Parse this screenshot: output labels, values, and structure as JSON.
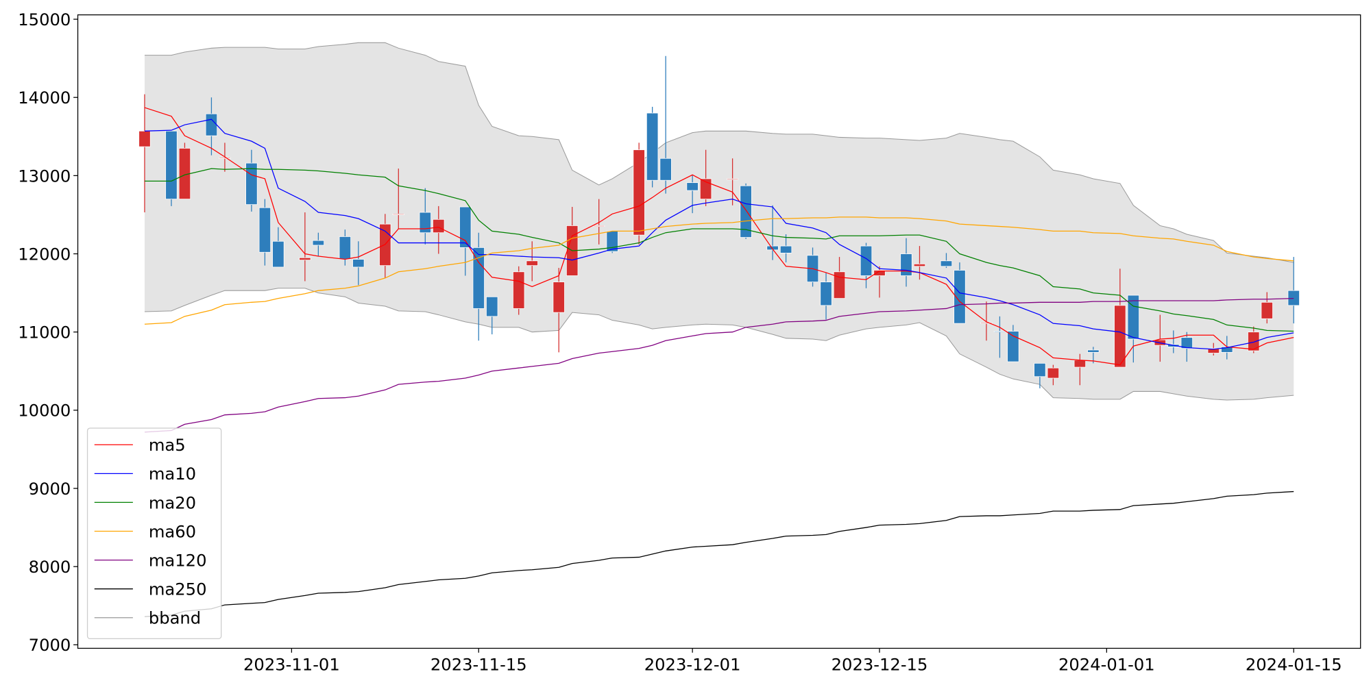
{
  "chart_data": {
    "type": "candlestick",
    "x": [
      "2023-10-21",
      "2023-10-23",
      "2023-10-24",
      "2023-10-26",
      "2023-10-27",
      "2023-10-29",
      "2023-10-30",
      "2023-10-31",
      "2023-11-02",
      "2023-11-03",
      "2023-11-05",
      "2023-11-06",
      "2023-11-08",
      "2023-11-09",
      "2023-11-11",
      "2023-11-12",
      "2023-11-14",
      "2023-11-15",
      "2023-11-16",
      "2023-11-18",
      "2023-11-19",
      "2023-11-21",
      "2023-11-22",
      "2023-11-24",
      "2023-11-25",
      "2023-11-27",
      "2023-11-28",
      "2023-11-29",
      "2023-12-01",
      "2023-12-02",
      "2023-12-04",
      "2023-12-05",
      "2023-12-07",
      "2023-12-08",
      "2023-12-10",
      "2023-12-11",
      "2023-12-12",
      "2023-12-14",
      "2023-12-15",
      "2023-12-17",
      "2023-12-18",
      "2023-12-20",
      "2023-12-21",
      "2023-12-23",
      "2023-12-24",
      "2023-12-25",
      "2023-12-27",
      "2023-12-28",
      "2023-12-30",
      "2023-12-31",
      "2024-01-02",
      "2024-01-03",
      "2024-01-05",
      "2024-01-06",
      "2024-01-07",
      "2024-01-09",
      "2024-01-10",
      "2024-01-12",
      "2024-01-13",
      "2024-01-15"
    ],
    "open": [
      13370,
      13570,
      12700,
      13790,
      13220,
      13160,
      12590,
      12160,
      11920,
      12170,
      12220,
      11930,
      11850,
      12500,
      12530,
      12270,
      12600,
      12080,
      11450,
      11300,
      11850,
      11250,
      11720,
      12350,
      12290,
      12240,
      13800,
      13220,
      12910,
      12700,
      12950,
      12870,
      12100,
      12100,
      11980,
      11640,
      11430,
      12100,
      11720,
      12000,
      11840,
      11910,
      11790,
      11110,
      11010,
      11010,
      10600,
      10410,
      10550,
      10770,
      10550,
      11470,
      10830,
      10840,
      10930,
      10730,
      10810,
      10760,
      11170,
      11530
    ],
    "high": [
      14040,
      13570,
      13420,
      14000,
      13420,
      13330,
      12700,
      12340,
      12530,
      12270,
      12310,
      12160,
      12510,
      13090,
      12840,
      12610,
      12600,
      12270,
      11450,
      11840,
      12160,
      11820,
      12600,
      12700,
      12290,
      13420,
      13880,
      14530,
      13010,
      13330,
      13220,
      12900,
      12620,
      12250,
      12080,
      11760,
      11960,
      12140,
      11840,
      12200,
      12100,
      12010,
      11890,
      11390,
      11200,
      11090,
      10600,
      10580,
      10720,
      10810,
      11810,
      11470,
      11220,
      11020,
      11000,
      10860,
      10950,
      11070,
      11510,
      11960
    ],
    "low": [
      12530,
      12610,
      12700,
      13260,
      13050,
      12540,
      11850,
      11830,
      11650,
      11970,
      11850,
      11600,
      11690,
      12320,
      12120,
      12000,
      11720,
      10890,
      10970,
      11220,
      11650,
      10740,
      11720,
      12120,
      12010,
      12120,
      12850,
      12770,
      12520,
      12610,
      12620,
      12190,
      11920,
      11890,
      11580,
      11160,
      11430,
      11560,
      11440,
      11580,
      11670,
      11820,
      11110,
      10890,
      10670,
      10620,
      10280,
      10320,
      10320,
      10600,
      10550,
      10610,
      10620,
      10730,
      10620,
      10700,
      10650,
      10730,
      11110,
      11110
    ],
    "close": [
      13570,
      12700,
      13350,
      13510,
      13230,
      12630,
      12020,
      11830,
      11950,
      12110,
      11930,
      11830,
      12380,
      12510,
      12270,
      12440,
      12080,
      11300,
      11200,
      11770,
      11910,
      11640,
      12360,
      12360,
      12030,
      13330,
      12940,
      12940,
      12810,
      12960,
      12960,
      12210,
      12050,
      12010,
      11640,
      11340,
      11770,
      11720,
      11790,
      11720,
      11870,
      11840,
      11110,
      11120,
      11000,
      10620,
      10430,
      10540,
      10640,
      10740,
      11340,
      10910,
      10900,
      10810,
      10790,
      10790,
      10740,
      11000,
      11380,
      11340
    ],
    "up_color": "#d62f2f",
    "down_color": "#2e7ebc",
    "series": [
      {
        "name": "ma5",
        "color": "#ff0000",
        "values": [
          13870,
          13760,
          13510,
          13350,
          13240,
          13010,
          12960,
          12400,
          12000,
          11970,
          11930,
          11960,
          12120,
          12320,
          12320,
          12340,
          12170,
          11890,
          11700,
          11650,
          11580,
          11720,
          12230,
          12400,
          12510,
          12610,
          12720,
          12840,
          13010,
          12920,
          12790,
          12560,
          12060,
          11840,
          11810,
          11760,
          11700,
          11670,
          11780,
          11780,
          11760,
          11610,
          11390,
          11130,
          11060,
          10950,
          10800,
          10670,
          10640,
          10630,
          10580,
          10820,
          10910,
          10920,
          10960,
          10960,
          10810,
          10780,
          10860,
          10930
        ]
      },
      {
        "name": "ma10",
        "color": "#0000ff",
        "values": [
          13570,
          13580,
          13650,
          13720,
          13540,
          13440,
          13350,
          12840,
          12670,
          12530,
          12490,
          12450,
          12290,
          12140,
          12140,
          12140,
          12140,
          11990,
          11990,
          11970,
          11960,
          11950,
          11920,
          12010,
          12060,
          12100,
          12270,
          12430,
          12620,
          12650,
          12700,
          12640,
          12600,
          12390,
          12330,
          12270,
          12120,
          11940,
          11810,
          11790,
          11760,
          11690,
          11500,
          11440,
          11400,
          11350,
          11220,
          11110,
          11080,
          11040,
          11000,
          10930,
          10860,
          10830,
          10800,
          10780,
          10800,
          10870,
          10930,
          10990
        ]
      },
      {
        "name": "ma20",
        "color": "#008000",
        "values": [
          12930,
          12930,
          13010,
          13090,
          13080,
          13090,
          13080,
          13080,
          13070,
          13060,
          13030,
          13010,
          12980,
          12870,
          12810,
          12770,
          12680,
          12430,
          12290,
          12250,
          12210,
          12140,
          12040,
          12060,
          12080,
          12140,
          12210,
          12270,
          12320,
          12320,
          12320,
          12310,
          12230,
          12210,
          12200,
          12190,
          12230,
          12230,
          12230,
          12240,
          12240,
          12160,
          12000,
          11890,
          11850,
          11820,
          11720,
          11580,
          11550,
          11500,
          11470,
          11330,
          11270,
          11230,
          11210,
          11160,
          11090,
          11050,
          11020,
          11010
        ]
      },
      {
        "name": "ma60",
        "color": "#ffa500",
        "values": [
          11100,
          11120,
          11200,
          11280,
          11350,
          11380,
          11390,
          11430,
          11490,
          11530,
          11560,
          11590,
          11690,
          11770,
          11810,
          11840,
          11890,
          11950,
          12010,
          12040,
          12070,
          12110,
          12200,
          12260,
          12290,
          12290,
          12320,
          12350,
          12380,
          12390,
          12400,
          12420,
          12450,
          12450,
          12460,
          12460,
          12470,
          12470,
          12460,
          12460,
          12450,
          12420,
          12380,
          12360,
          12350,
          12340,
          12310,
          12290,
          12290,
          12270,
          12260,
          12230,
          12200,
          12190,
          12160,
          12110,
          12030,
          11960,
          11940,
          11910
        ]
      },
      {
        "name": "ma120",
        "color": "#800080",
        "values": [
          9720,
          9740,
          9820,
          9880,
          9940,
          9960,
          9980,
          10040,
          10110,
          10150,
          10160,
          10180,
          10260,
          10330,
          10360,
          10370,
          10410,
          10450,
          10500,
          10540,
          10560,
          10600,
          10660,
          10730,
          10750,
          10790,
          10830,
          10890,
          10950,
          10980,
          11000,
          11060,
          11100,
          11130,
          11140,
          11150,
          11200,
          11240,
          11260,
          11270,
          11280,
          11300,
          11350,
          11360,
          11370,
          11370,
          11380,
          11380,
          11380,
          11390,
          11390,
          11400,
          11400,
          11400,
          11400,
          11400,
          11410,
          11420,
          11420,
          11430
        ]
      },
      {
        "name": "ma250",
        "color": "#000000",
        "values": [
          7360,
          7380,
          7430,
          7460,
          7510,
          7530,
          7540,
          7580,
          7630,
          7660,
          7670,
          7680,
          7730,
          7770,
          7810,
          7830,
          7850,
          7880,
          7920,
          7950,
          7960,
          7990,
          8040,
          8080,
          8110,
          8120,
          8160,
          8200,
          8250,
          8260,
          8280,
          8310,
          8360,
          8390,
          8400,
          8410,
          8450,
          8500,
          8530,
          8540,
          8550,
          8590,
          8640,
          8650,
          8650,
          8660,
          8680,
          8710,
          8710,
          8720,
          8730,
          8780,
          8800,
          8810,
          8830,
          8870,
          8900,
          8920,
          8940,
          8960
        ]
      }
    ],
    "bband": {
      "name": "bband",
      "color": "#999999",
      "fill": "#e4e4e4",
      "upper": [
        14540,
        14540,
        14580,
        14630,
        14640,
        14640,
        14640,
        14620,
        14620,
        14650,
        14680,
        14700,
        14700,
        14630,
        14540,
        14460,
        14400,
        13900,
        13630,
        13510,
        13500,
        13460,
        13070,
        12880,
        12960,
        13170,
        13290,
        13420,
        13550,
        13570,
        13570,
        13570,
        13540,
        13530,
        13530,
        13510,
        13490,
        13480,
        13480,
        13460,
        13450,
        13480,
        13540,
        13490,
        13460,
        13440,
        13240,
        13070,
        13010,
        12960,
        12900,
        12620,
        12360,
        12320,
        12250,
        12170,
        12010,
        11970,
        11950,
        11890
      ],
      "lower": [
        11260,
        11270,
        11340,
        11470,
        11530,
        11530,
        11530,
        11560,
        11560,
        11500,
        11450,
        11370,
        11330,
        11270,
        11260,
        11220,
        11130,
        11100,
        11060,
        11060,
        11000,
        11020,
        11250,
        11220,
        11150,
        11090,
        11040,
        11060,
        11090,
        11100,
        11090,
        11060,
        10970,
        10920,
        10910,
        10890,
        10960,
        11040,
        11060,
        11090,
        11120,
        10950,
        10720,
        10550,
        10460,
        10400,
        10330,
        10160,
        10150,
        10140,
        10140,
        10240,
        10240,
        10210,
        10180,
        10140,
        10130,
        10140,
        10160,
        10190
      ]
    },
    "xlim": [
      "2023-10-16",
      "2024-01-20"
    ],
    "xticks": [
      "2023-11-01",
      "2023-11-15",
      "2023-12-01",
      "2023-12-15",
      "2024-01-01",
      "2024-01-15"
    ],
    "ylim": [
      6955,
      15056
    ],
    "yticks": [
      7000,
      8000,
      9000,
      10000,
      11000,
      12000,
      13000,
      14000,
      15000
    ],
    "legend": "lower left"
  }
}
